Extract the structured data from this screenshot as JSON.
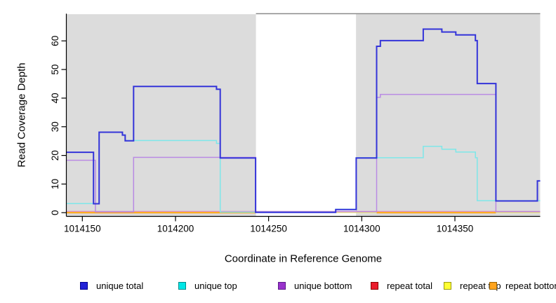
{
  "axes": {
    "x_label": "Coordinate in Reference Genome",
    "y_label": "Read Coverage Depth"
  },
  "legend": {
    "items": [
      {
        "label": "unique total",
        "fill": "#2121d6",
        "border": "#000090"
      },
      {
        "label": "unique top",
        "fill": "#00e6e6",
        "border": "#008b8b"
      },
      {
        "label": "unique bottom",
        "fill": "#9933cc",
        "border": "#5d1a8b"
      },
      {
        "label": "repeat total",
        "fill": "#ea1c2c",
        "border": "#8b0000"
      },
      {
        "label": "repeat top",
        "fill": "#ffff33",
        "border": "#99990f"
      },
      {
        "label": "repeat bottom",
        "fill": "#ffa41e",
        "border": "#9c6400"
      }
    ]
  },
  "chart_data": {
    "type": "line",
    "step": true,
    "title": "",
    "xlabel": "Coordinate in Reference Genome",
    "ylabel": "Read Coverage Depth",
    "xlim": [
      1014141.4,
      1014395.8
    ],
    "ylim": [
      -1.3,
      69.5
    ],
    "x_ticks": [
      1014150,
      1014200,
      1014250,
      1014300,
      1014350
    ],
    "y_ticks": [
      0,
      10,
      20,
      30,
      40,
      50,
      60
    ],
    "grid": false,
    "legend_position": "bottom",
    "shaded_regions": {
      "color": "#dcdcdc",
      "note": "repeat region shading; white gap in middle",
      "x_ranges": [
        [
          1014141.4,
          1014243.2
        ],
        [
          1014296.9,
          1014395.8
        ]
      ]
    },
    "series": [
      {
        "name": "repeat total",
        "color": "#dc8cc3",
        "legend_color": "#ea1c2c",
        "width": 1.4,
        "y_render_offset": 0.42,
        "step_points": [
          [
            1014141.4,
            0
          ]
        ]
      },
      {
        "name": "repeat top",
        "color": "#ffff33",
        "width": 1.4,
        "y_render_offset": 0.1,
        "step_points": [
          [
            1014141.4,
            0
          ]
        ]
      },
      {
        "name": "repeat bottom",
        "color": "#ffa41e",
        "width": 2,
        "y_render_offset": 0,
        "value": 0,
        "segments": [
          [
            1014141.4,
            1014243
          ],
          [
            1014308,
            1014372
          ]
        ]
      },
      {
        "name": "unique bottom",
        "color": "#b98ae3",
        "width": 1.5,
        "y_render_offset": 0.3,
        "step_points": [
          [
            1014141.4,
            18
          ],
          [
            1014157,
            0
          ],
          [
            1014177.5,
            19
          ],
          [
            1014243,
            0
          ],
          [
            1014308,
            40
          ],
          [
            1014310,
            41
          ],
          [
            1014372,
            0
          ]
        ]
      },
      {
        "name": "unique top",
        "color": "#7ee7e9",
        "width": 1.5,
        "y_render_offset": 0.18,
        "step_points": [
          [
            1014141.4,
            3
          ],
          [
            1014159,
            28
          ],
          [
            1014171.5,
            27
          ],
          [
            1014173,
            25
          ],
          [
            1014222,
            24
          ],
          [
            1014224,
            0
          ],
          [
            1014286,
            1
          ],
          [
            1014297,
            19
          ],
          [
            1014333,
            23
          ],
          [
            1014343,
            22
          ],
          [
            1014350.5,
            21
          ],
          [
            1014361,
            19
          ],
          [
            1014362,
            4
          ]
        ]
      },
      {
        "name": "unique total",
        "color": "#3434d9",
        "width": 2,
        "y_render_offset": 0.1,
        "step_points": [
          [
            1014141.4,
            21
          ],
          [
            1014156,
            3
          ],
          [
            1014159,
            28
          ],
          [
            1014171.5,
            27
          ],
          [
            1014173,
            25
          ],
          [
            1014177.5,
            44
          ],
          [
            1014222,
            43
          ],
          [
            1014224,
            19
          ],
          [
            1014243,
            0
          ],
          [
            1014286,
            1
          ],
          [
            1014297,
            19
          ],
          [
            1014308,
            58
          ],
          [
            1014310,
            60
          ],
          [
            1014333,
            64
          ],
          [
            1014343,
            63
          ],
          [
            1014350.5,
            62
          ],
          [
            1014361,
            60
          ],
          [
            1014362,
            45
          ],
          [
            1014372,
            4
          ],
          [
            1014394.3,
            11
          ]
        ]
      }
    ]
  }
}
